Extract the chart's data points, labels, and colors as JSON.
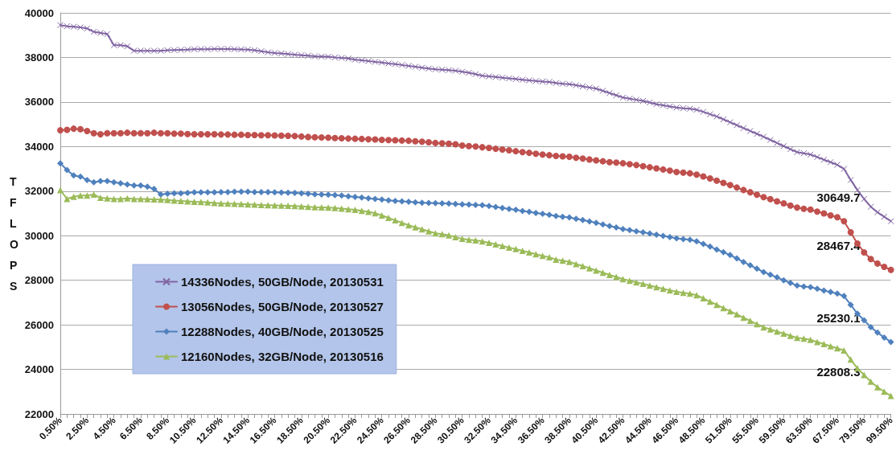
{
  "chart_data": {
    "type": "line",
    "ylabel": "TFLOPS",
    "categories": [
      "0.50%",
      null,
      null,
      null,
      "2.50%",
      null,
      null,
      null,
      "4.50%",
      null,
      null,
      null,
      "6.50%",
      null,
      null,
      null,
      "8.50%",
      null,
      null,
      null,
      "10.50%",
      null,
      null,
      null,
      "12.50%",
      null,
      null,
      null,
      "14.50%",
      null,
      null,
      null,
      "16.50%",
      null,
      null,
      null,
      "18.50%",
      null,
      null,
      null,
      "20.50%",
      null,
      null,
      null,
      "22.50%",
      null,
      null,
      null,
      "24.50%",
      null,
      null,
      null,
      "26.50%",
      null,
      null,
      null,
      "28.50%",
      null,
      null,
      null,
      "30.50%",
      null,
      null,
      null,
      "32.50%",
      null,
      null,
      null,
      "34.50%",
      null,
      null,
      null,
      "36.50%",
      null,
      null,
      null,
      "38.50%",
      null,
      null,
      null,
      "40.50%",
      null,
      null,
      null,
      "42.50%",
      null,
      null,
      null,
      "44.50%",
      null,
      null,
      null,
      "46.50%",
      null,
      null,
      null,
      "48.50%",
      null,
      null,
      null,
      "51.50%",
      null,
      null,
      null,
      "55.50%",
      null,
      null,
      null,
      "59.50%",
      null,
      null,
      null,
      "63.50%",
      null,
      null,
      null,
      "67.50%",
      null,
      null,
      null,
      "79.50%",
      null,
      null,
      null,
      "99.50%"
    ],
    "series": [
      {
        "name": "14336Nodes, 50GB/Node, 20130531",
        "color": "#8064a2",
        "marker": "cross",
        "values": [
          39450,
          39400,
          39380,
          39350,
          39300,
          39150,
          39100,
          39050,
          38550,
          38550,
          38500,
          38300,
          38300,
          38300,
          38300,
          38300,
          38320,
          38330,
          38340,
          38350,
          38370,
          38370,
          38370,
          38380,
          38380,
          38380,
          38370,
          38360,
          38350,
          38320,
          38280,
          38230,
          38200,
          38180,
          38150,
          38120,
          38100,
          38080,
          38050,
          38040,
          38030,
          38000,
          37980,
          37950,
          37900,
          37870,
          37840,
          37800,
          37770,
          37730,
          37700,
          37660,
          37620,
          37580,
          37540,
          37500,
          37470,
          37450,
          37430,
          37400,
          37360,
          37310,
          37250,
          37180,
          37150,
          37120,
          37090,
          37060,
          37030,
          37000,
          36970,
          36940,
          36920,
          36900,
          36850,
          36820,
          36800,
          36750,
          36700,
          36650,
          36600,
          36500,
          36400,
          36300,
          36200,
          36150,
          36100,
          36050,
          35980,
          35900,
          35850,
          35800,
          35750,
          35720,
          35700,
          35650,
          35560,
          35450,
          35350,
          35220,
          35090,
          34960,
          34830,
          34700,
          34570,
          34440,
          34300,
          34160,
          34020,
          33880,
          33750,
          33700,
          33640,
          33530,
          33410,
          33300,
          33180,
          33000,
          32500,
          32050,
          31650,
          31300,
          31050,
          30850,
          30649.7
        ]
      },
      {
        "name": "13056Nodes, 50GB/Node, 20130527",
        "color": "#c0504d",
        "marker": "circle",
        "values": [
          34730,
          34750,
          34800,
          34780,
          34700,
          34600,
          34550,
          34600,
          34600,
          34600,
          34620,
          34600,
          34600,
          34600,
          34620,
          34600,
          34600,
          34580,
          34580,
          34560,
          34550,
          34550,
          34550,
          34550,
          34540,
          34540,
          34530,
          34530,
          34520,
          34520,
          34510,
          34510,
          34500,
          34490,
          34480,
          34470,
          34450,
          34430,
          34420,
          34410,
          34400,
          34380,
          34370,
          34360,
          34350,
          34340,
          34330,
          34320,
          34300,
          34290,
          34280,
          34270,
          34260,
          34240,
          34220,
          34190,
          34160,
          34150,
          34130,
          34100,
          34050,
          34020,
          34000,
          33970,
          33940,
          33900,
          33870,
          33830,
          33790,
          33750,
          33720,
          33680,
          33640,
          33610,
          33580,
          33560,
          33540,
          33500,
          33460,
          33420,
          33380,
          33340,
          33300,
          33280,
          33250,
          33210,
          33170,
          33120,
          33070,
          33020,
          32970,
          32920,
          32860,
          32830,
          32800,
          32740,
          32660,
          32570,
          32470,
          32370,
          32270,
          32160,
          32050,
          31950,
          31840,
          31730,
          31640,
          31540,
          31450,
          31350,
          31260,
          31210,
          31170,
          31080,
          31000,
          30910,
          30830,
          30650,
          30150,
          29650,
          29250,
          28950,
          28750,
          28600,
          28467.4
        ]
      },
      {
        "name": "12288Nodes, 40GB/Node, 20130525",
        "color": "#4f81bd",
        "marker": "diamond",
        "values": [
          33250,
          32950,
          32700,
          32650,
          32500,
          32400,
          32450,
          32450,
          32400,
          32350,
          32300,
          32250,
          32250,
          32200,
          32100,
          31850,
          31880,
          31900,
          31900,
          31920,
          31950,
          31950,
          31950,
          31950,
          31960,
          31960,
          31970,
          31970,
          31970,
          31960,
          31960,
          31960,
          31950,
          31940,
          31930,
          31920,
          31900,
          31880,
          31860,
          31850,
          31840,
          31820,
          31800,
          31770,
          31740,
          31710,
          31680,
          31650,
          31620,
          31590,
          31560,
          31540,
          31520,
          31500,
          31480,
          31470,
          31460,
          31450,
          31440,
          31420,
          31410,
          31400,
          31380,
          31370,
          31330,
          31290,
          31240,
          31200,
          31160,
          31110,
          31070,
          31020,
          30980,
          30940,
          30880,
          30850,
          30820,
          30760,
          30700,
          30640,
          30580,
          30500,
          30430,
          30370,
          30300,
          30250,
          30200,
          30150,
          30100,
          30040,
          29990,
          29940,
          29880,
          29850,
          29820,
          29750,
          29630,
          29510,
          29380,
          29260,
          29130,
          28980,
          28820,
          28670,
          28520,
          28370,
          28250,
          28130,
          28000,
          27880,
          27760,
          27720,
          27690,
          27620,
          27540,
          27470,
          27400,
          27290,
          26900,
          26500,
          26200,
          25900,
          25650,
          25430,
          25230.1
        ]
      },
      {
        "name": "12160Nodes, 32GB/Node, 20130516",
        "color": "#9bbb59",
        "marker": "triangle",
        "values": [
          32050,
          31650,
          31750,
          31800,
          31800,
          31850,
          31700,
          31680,
          31650,
          31650,
          31680,
          31650,
          31650,
          31640,
          31630,
          31620,
          31600,
          31580,
          31560,
          31540,
          31520,
          31510,
          31500,
          31470,
          31450,
          31440,
          31430,
          31420,
          31410,
          31400,
          31380,
          31370,
          31360,
          31350,
          31340,
          31330,
          31320,
          31300,
          31280,
          31270,
          31260,
          31240,
          31220,
          31190,
          31160,
          31120,
          31070,
          31010,
          30910,
          30800,
          30690,
          30580,
          30470,
          30380,
          30290,
          30200,
          30110,
          30070,
          30020,
          29940,
          29860,
          29820,
          29790,
          29750,
          29680,
          29610,
          29540,
          29470,
          29400,
          29320,
          29250,
          29170,
          29100,
          29030,
          28930,
          28880,
          28830,
          28730,
          28640,
          28540,
          28440,
          28340,
          28240,
          28150,
          28050,
          27980,
          27910,
          27840,
          27760,
          27690,
          27620,
          27550,
          27480,
          27440,
          27400,
          27330,
          27190,
          27040,
          26900,
          26750,
          26610,
          26470,
          26320,
          26180,
          26030,
          25890,
          25800,
          25700,
          25610,
          25510,
          25420,
          25380,
          25330,
          25230,
          25140,
          25040,
          24950,
          24850,
          24440,
          24050,
          23750,
          23450,
          23200,
          23000,
          22808.3
        ]
      }
    ],
    "annotations": [
      {
        "text": "30649.7",
        "x": "99.50%",
        "y": 30649.7
      },
      {
        "text": "28467.4",
        "x": "99.50%",
        "y": 28467.4
      },
      {
        "text": "25230.1",
        "x": "99.50%",
        "y": 25230.1
      },
      {
        "text": "22808.3",
        "x": "99.50%",
        "y": 22808.3
      }
    ],
    "ylim": [
      22000,
      40000
    ],
    "yticks": [
      22000,
      24000,
      26000,
      28000,
      30000,
      32000,
      34000,
      36000,
      38000,
      40000
    ],
    "grid": "y",
    "legend": "bottom left",
    "line_style": "solid"
  }
}
